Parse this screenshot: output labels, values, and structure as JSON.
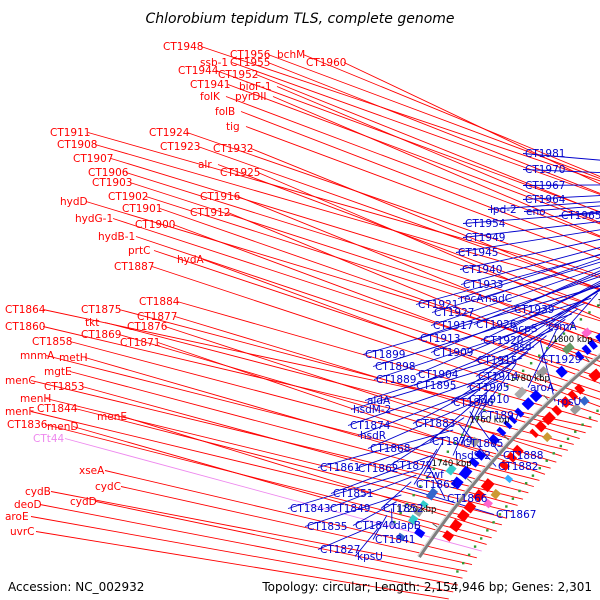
{
  "title": "Chlorobium tepidum TLS, complete genome",
  "footer": {
    "accession": "Accession: NC_002932",
    "summary": "Topology: circular; Length: 2,154,946 bp; Genes: 2,301"
  },
  "colors": {
    "left_labels": "#ff0000",
    "right_labels": "#0000cc",
    "trna_label": "#ee88ee",
    "forward_feature": "#ff0000",
    "reverse_feature": "#0000ff",
    "backbone": "#7f7f7f",
    "gc_marks": "#339933"
  },
  "ticks": [
    "1900 kbp",
    "1880 kbp",
    "1860 kbp",
    "1840 kbp",
    "1820 kbp",
    "1800 kbp",
    "1780 kbp",
    "1760 kbp",
    "1740 kbp",
    "1720 kbp"
  ],
  "left_labels": [
    {
      "text": "CT1948",
      "color": "#ff0000"
    },
    {
      "text": "CT1956",
      "color": "#ff0000"
    },
    {
      "text": "bchM",
      "color": "#ff0000"
    },
    {
      "text": "ssb-1",
      "color": "#ff0000"
    },
    {
      "text": "CT1955",
      "color": "#ff0000"
    },
    {
      "text": "CT1960",
      "color": "#ff0000"
    },
    {
      "text": "CT1944",
      "color": "#ff0000"
    },
    {
      "text": "CT1952",
      "color": "#ff0000"
    },
    {
      "text": "CT1941",
      "color": "#ff0000"
    },
    {
      "text": "bioF-1",
      "color": "#ff0000"
    },
    {
      "text": "folK",
      "color": "#ff0000"
    },
    {
      "text": "pyrDII",
      "color": "#ff0000"
    },
    {
      "text": "folB",
      "color": "#ff0000"
    },
    {
      "text": "tig",
      "color": "#ff0000"
    },
    {
      "text": "CT1911",
      "color": "#ff0000"
    },
    {
      "text": "CT1924",
      "color": "#ff0000"
    },
    {
      "text": "CT1908",
      "color": "#ff0000"
    },
    {
      "text": "CT1923",
      "color": "#ff0000"
    },
    {
      "text": "CT1932",
      "color": "#ff0000"
    },
    {
      "text": "CT1907",
      "color": "#ff0000"
    },
    {
      "text": "alr",
      "color": "#ff0000"
    },
    {
      "text": "CT1906",
      "color": "#ff0000"
    },
    {
      "text": "CT1925",
      "color": "#ff0000"
    },
    {
      "text": "CT1903",
      "color": "#ff0000"
    },
    {
      "text": "CT1902",
      "color": "#ff0000"
    },
    {
      "text": "CT1916",
      "color": "#ff0000"
    },
    {
      "text": "hydD",
      "color": "#ff0000"
    },
    {
      "text": "CT1901",
      "color": "#ff0000"
    },
    {
      "text": "CT1912",
      "color": "#ff0000"
    },
    {
      "text": "hydG-1",
      "color": "#ff0000"
    },
    {
      "text": "CT1900",
      "color": "#ff0000"
    },
    {
      "text": "hydB-1",
      "color": "#ff0000"
    },
    {
      "text": "prtC",
      "color": "#ff0000"
    },
    {
      "text": "hydA",
      "color": "#ff0000"
    },
    {
      "text": "CT1887",
      "color": "#ff0000"
    },
    {
      "text": "CT1884",
      "color": "#ff0000"
    },
    {
      "text": "CT1864",
      "color": "#ff0000"
    },
    {
      "text": "CT1875",
      "color": "#ff0000"
    },
    {
      "text": "CT1877",
      "color": "#ff0000"
    },
    {
      "text": "tkt",
      "color": "#ff0000"
    },
    {
      "text": "CT1860",
      "color": "#ff0000"
    },
    {
      "text": "CT1876",
      "color": "#ff0000"
    },
    {
      "text": "CT1869",
      "color": "#ff0000"
    },
    {
      "text": "CT1858",
      "color": "#ff0000"
    },
    {
      "text": "CT1871",
      "color": "#ff0000"
    },
    {
      "text": "mnmA",
      "color": "#ff0000"
    },
    {
      "text": "metH",
      "color": "#ff0000"
    },
    {
      "text": "mgtE",
      "color": "#ff0000"
    },
    {
      "text": "menC",
      "color": "#ff0000"
    },
    {
      "text": "CT1853",
      "color": "#ff0000"
    },
    {
      "text": "menH",
      "color": "#ff0000"
    },
    {
      "text": "CT1844",
      "color": "#ff0000"
    },
    {
      "text": "menF",
      "color": "#ff0000"
    },
    {
      "text": "menE",
      "color": "#ff0000"
    },
    {
      "text": "CT1836",
      "color": "#ff0000"
    },
    {
      "text": "menD",
      "color": "#ff0000"
    },
    {
      "text": "CTt44",
      "color": "#ee88ee"
    },
    {
      "text": "xseA",
      "color": "#ff0000"
    },
    {
      "text": "cydC",
      "color": "#ff0000"
    },
    {
      "text": "cydB",
      "color": "#ff0000"
    },
    {
      "text": "cydD",
      "color": "#ff0000"
    },
    {
      "text": "deoD",
      "color": "#ff0000"
    },
    {
      "text": "aroE",
      "color": "#ff0000"
    },
    {
      "text": "uvrC",
      "color": "#ff0000"
    }
  ],
  "right_labels": [
    {
      "text": "CT1981"
    },
    {
      "text": "CT1970"
    },
    {
      "text": "CT1967"
    },
    {
      "text": "CT1964"
    },
    {
      "text": "lpd-2"
    },
    {
      "text": "eno"
    },
    {
      "text": "CT1965"
    },
    {
      "text": "CT1954"
    },
    {
      "text": "CT1949"
    },
    {
      "text": "CT1945"
    },
    {
      "text": "CT1940"
    },
    {
      "text": "CT1933"
    },
    {
      "text": "recA"
    },
    {
      "text": "nadC"
    },
    {
      "text": "CT1921"
    },
    {
      "text": "CT1939"
    },
    {
      "text": "CT1927"
    },
    {
      "text": "CT1917"
    },
    {
      "text": "CT1926"
    },
    {
      "text": "acpS"
    },
    {
      "text": "csmA"
    },
    {
      "text": "CT1913"
    },
    {
      "text": "CT1920"
    },
    {
      "text": "asd"
    },
    {
      "text": "CT1909"
    },
    {
      "text": "CT1899"
    },
    {
      "text": "CT1915"
    },
    {
      "text": "CT1929"
    },
    {
      "text": "CT1898"
    },
    {
      "text": "CT1904"
    },
    {
      "text": "CT1914"
    },
    {
      "text": "CT1889"
    },
    {
      "text": "CT1905"
    },
    {
      "text": "aroA"
    },
    {
      "text": "CT1895"
    },
    {
      "text": "CT1910"
    },
    {
      "text": "rpsU"
    },
    {
      "text": "aldA"
    },
    {
      "text": "CT1896"
    },
    {
      "text": "hsdM-2"
    },
    {
      "text": "CT1897"
    },
    {
      "text": "CT1874"
    },
    {
      "text": "CT1883"
    },
    {
      "text": "hsdR"
    },
    {
      "text": "CT1879"
    },
    {
      "text": "CT1885"
    },
    {
      "text": "CT1868"
    },
    {
      "text": "hsdS-2"
    },
    {
      "text": "CT1888"
    },
    {
      "text": "CT1872"
    },
    {
      "text": "CT1882"
    },
    {
      "text": "CT1861"
    },
    {
      "text": "CT1862"
    },
    {
      "text": "zwf"
    },
    {
      "text": "CT1863"
    },
    {
      "text": "CT1851"
    },
    {
      "text": "CT1866"
    },
    {
      "text": "CT1843"
    },
    {
      "text": "CT1849"
    },
    {
      "text": "CT1852"
    },
    {
      "text": "CT1867"
    },
    {
      "text": "CT1835"
    },
    {
      "text": "CT1840"
    },
    {
      "text": "dapB"
    },
    {
      "text": "CT1841"
    },
    {
      "text": "CT1827"
    },
    {
      "text": "kpsU"
    }
  ]
}
